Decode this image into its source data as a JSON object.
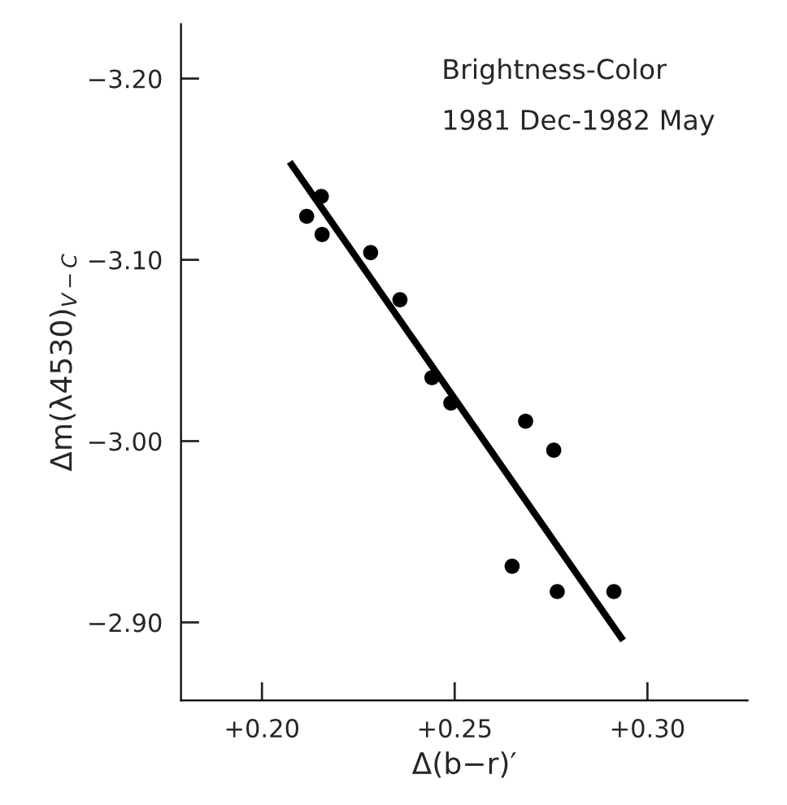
{
  "chart_data": {
    "type": "scatter",
    "xlabel": "Δ(b−r)′",
    "ylabel": "Δm(λ4530)$_{V−C}$",
    "annotations": [
      "Brightness-Color",
      "1981 Dec-1982 May"
    ],
    "series": [
      {
        "color": "#000000",
        "marker": "circle",
        "x": [
          0.2116,
          0.2154,
          0.2156,
          0.2282,
          0.2358,
          0.2441,
          0.249,
          0.2684,
          0.2757,
          0.2649,
          0.2766,
          0.2913
        ],
        "values": [
          -3.124,
          -3.135,
          -3.114,
          -3.104,
          -3.078,
          -3.035,
          -3.021,
          -3.011,
          -2.995,
          -2.931,
          -2.917,
          -2.917
        ]
      },
      {
        "type": "line",
        "color": "#000000",
        "x": [
          0.2072,
          0.2937
        ],
        "values": [
          -3.154,
          -2.89
        ]
      }
    ],
    "xlim": [
      0.179,
      0.326
    ],
    "ylim": [
      -2.857,
      -3.23
    ],
    "xticks": [
      {
        "value": 0.2,
        "label": "+0.20"
      },
      {
        "value": 0.25,
        "label": "+0.25"
      },
      {
        "value": 0.3,
        "label": "+0.30"
      }
    ],
    "yticks": [
      {
        "value": -3.2,
        "label": "−3.20"
      },
      {
        "value": -3.1,
        "label": "−3.10"
      },
      {
        "value": -3.0,
        "label": "−3.00"
      },
      {
        "value": -2.9,
        "label": "−2.90"
      }
    ],
    "grid": false,
    "legend": false
  }
}
